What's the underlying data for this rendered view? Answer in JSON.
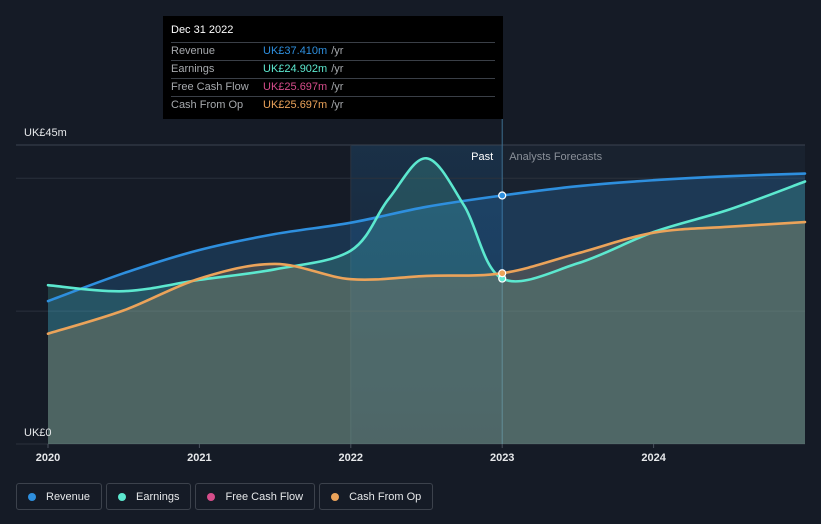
{
  "tooltip": {
    "date": "Dec 31 2022",
    "rows": [
      {
        "label": "Revenue",
        "value": "UK£37.410m",
        "unit": "/yr",
        "color": "#2e8fde"
      },
      {
        "label": "Earnings",
        "value": "UK£24.902m",
        "unit": "/yr",
        "color": "#5ce8cf"
      },
      {
        "label": "Free Cash Flow",
        "value": "UK£25.697m",
        "unit": "/yr",
        "color": "#d64d8b"
      },
      {
        "label": "Cash From Op",
        "value": "UK£25.697m",
        "unit": "/yr",
        "color": "#eba35a"
      }
    ]
  },
  "legend": [
    {
      "label": "Revenue",
      "color": "#2e8fde"
    },
    {
      "label": "Earnings",
      "color": "#5ce8cf"
    },
    {
      "label": "Free Cash Flow",
      "color": "#d64d8b"
    },
    {
      "label": "Cash From Op",
      "color": "#eba35a"
    }
  ],
  "chart_data": {
    "type": "line",
    "y_max_label": "UK£45m",
    "y_min_label": "UK£0",
    "ylim": [
      0,
      45
    ],
    "xlim": [
      2020,
      2025
    ],
    "x_ticks": [
      "2020",
      "2021",
      "2022",
      "2023",
      "2024"
    ],
    "past_label": "Past",
    "forecast_label": "Analysts Forecasts",
    "past_range": [
      2022,
      2023
    ],
    "series": [
      {
        "name": "Revenue",
        "color": "#2e8fde",
        "points": [
          [
            2020,
            21.5
          ],
          [
            2020.5,
            25.7
          ],
          [
            2021,
            29.2
          ],
          [
            2021.5,
            31.6
          ],
          [
            2022,
            33.3
          ],
          [
            2022.5,
            35.7
          ],
          [
            2023,
            37.4
          ],
          [
            2023.5,
            38.8
          ],
          [
            2024,
            39.7
          ],
          [
            2024.5,
            40.3
          ],
          [
            2025,
            40.7
          ]
        ]
      },
      {
        "name": "Earnings",
        "color": "#5ce8cf",
        "points": [
          [
            2020,
            23.9
          ],
          [
            2020.5,
            23.0
          ],
          [
            2021,
            24.7
          ],
          [
            2021.5,
            26.3
          ],
          [
            2022,
            29.1
          ],
          [
            2022.25,
            36.9
          ],
          [
            2022.5,
            43.0
          ],
          [
            2022.75,
            35.8
          ],
          [
            2023,
            24.9
          ],
          [
            2023.5,
            27.2
          ],
          [
            2024,
            31.9
          ],
          [
            2024.5,
            35.3
          ],
          [
            2025,
            39.5
          ]
        ]
      },
      {
        "name": "Cash From Op",
        "color": "#eba35a",
        "points": [
          [
            2020,
            16.6
          ],
          [
            2020.5,
            20.1
          ],
          [
            2021,
            24.9
          ],
          [
            2021.5,
            27.1
          ],
          [
            2022,
            24.8
          ],
          [
            2022.5,
            25.3
          ],
          [
            2023,
            25.7
          ],
          [
            2023.5,
            28.7
          ],
          [
            2024,
            31.8
          ],
          [
            2024.5,
            32.7
          ],
          [
            2025,
            33.4
          ]
        ]
      }
    ],
    "highlight_x": 2023,
    "markers": [
      {
        "name": "Revenue",
        "x": 2023,
        "y": 37.4
      },
      {
        "name": "Earnings",
        "x": 2023,
        "y": 24.9
      },
      {
        "name": "Cash From Op",
        "x": 2023,
        "y": 25.7
      }
    ]
  }
}
